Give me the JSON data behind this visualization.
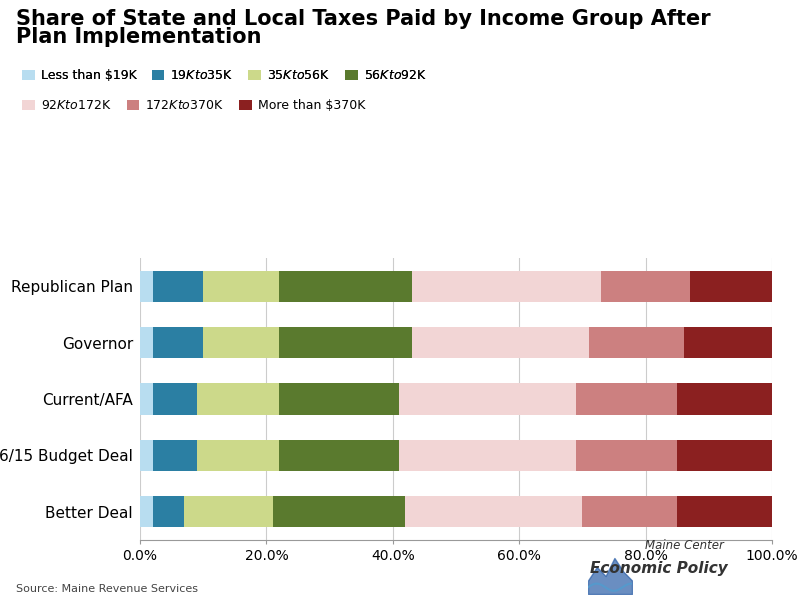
{
  "title_line1": "Share of State and Local Taxes Paid by Income Group After",
  "title_line2": "Plan Implementation",
  "categories": [
    "Republican Plan",
    "Governor",
    "Current/AFA",
    "6/15 Budget Deal",
    "Better Deal"
  ],
  "segments": {
    "Less than $19K": [
      2.0,
      2.0,
      2.0,
      2.0,
      2.0
    ],
    "$19K to $35K": [
      8.0,
      8.0,
      7.0,
      7.0,
      5.0
    ],
    "$35K to $56K": [
      12.0,
      12.0,
      13.0,
      13.0,
      14.0
    ],
    "$56K to $92K": [
      21.0,
      21.0,
      19.0,
      19.0,
      21.0
    ],
    "$92K to $172K": [
      30.0,
      28.0,
      28.0,
      28.0,
      28.0
    ],
    "$172K to $370K": [
      14.0,
      15.0,
      16.0,
      16.0,
      15.0
    ],
    "More than $370K": [
      13.0,
      14.0,
      15.0,
      15.0,
      15.0
    ]
  },
  "colors": {
    "Less than $19K": "#b8ddf0",
    "$19K to $35K": "#2b7fa3",
    "$35K to $56K": "#ccd98a",
    "$56K to $92K": "#5a7a2e",
    "$92K to $172K": "#f2d5d5",
    "$172K to $370K": "#cc8080",
    "More than $370K": "#8b2020"
  },
  "source": "Source: Maine Revenue Services",
  "xticks": [
    0.0,
    0.2,
    0.4,
    0.6,
    0.8,
    1.0
  ],
  "xticklabels": [
    "0.0%",
    "20.0%",
    "40.0%",
    "60.0%",
    "80.0%",
    "100.0%"
  ],
  "background_color": "#ffffff"
}
